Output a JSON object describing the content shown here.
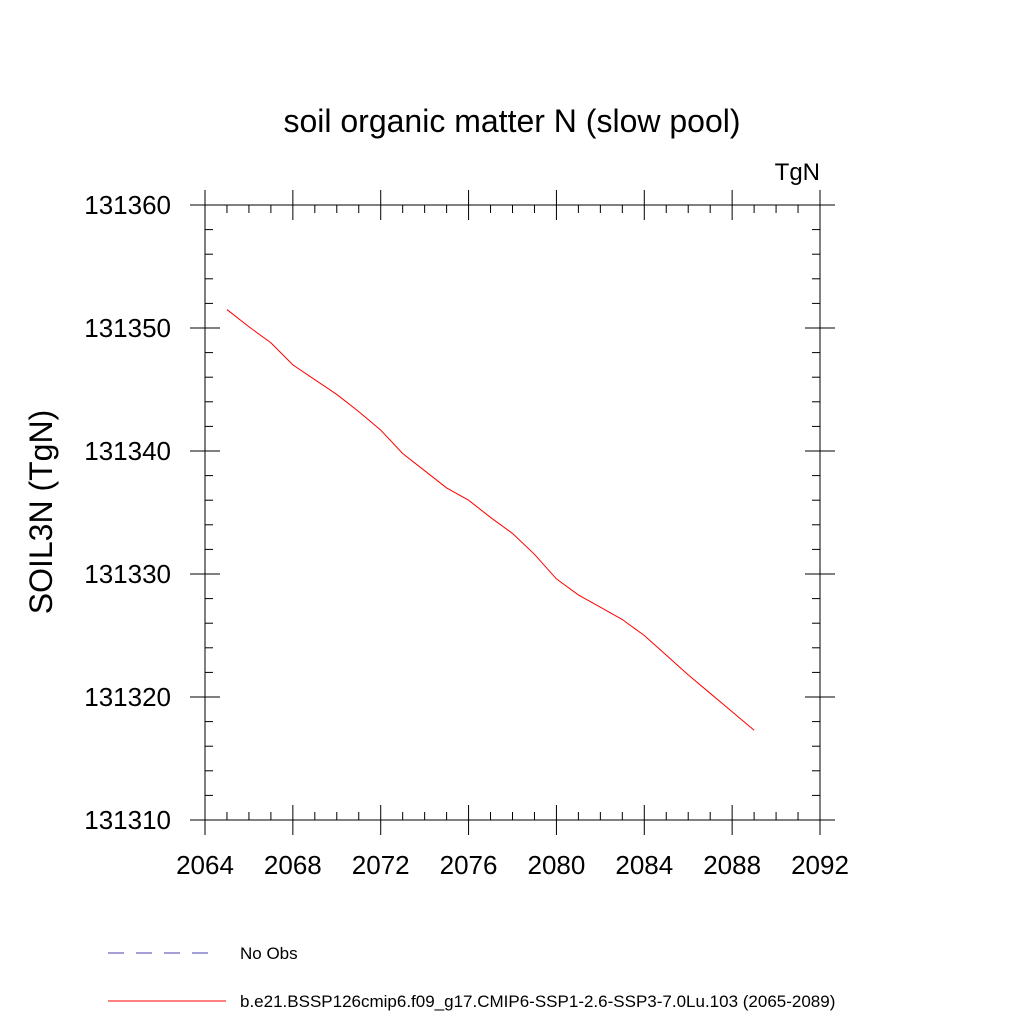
{
  "chart_data": {
    "type": "line",
    "title": "soil organic matter N (slow pool)",
    "units_label": "TgN",
    "ylabel": "SOIL3N  (TgN)",
    "xlabel": "",
    "xlim": [
      2064,
      2092
    ],
    "ylim": [
      131310,
      131360
    ],
    "x_major_ticks": [
      2064,
      2068,
      2072,
      2076,
      2080,
      2084,
      2088,
      2092
    ],
    "x_minor_step": 1,
    "y_major_ticks": [
      131310,
      131320,
      131330,
      131340,
      131350,
      131360
    ],
    "y_minor_step": 2,
    "grid": false,
    "legend_position": "bottom",
    "series": [
      {
        "name": "b.e21.BSSP126cmip6.f09_g17.CMIP6-SSP1-2.6-SSP3-7.0Lu.103 (2065-2089)",
        "color": "#ff0000",
        "dash": "solid",
        "x": [
          2065,
          2066,
          2067,
          2068,
          2069,
          2070,
          2071,
          2072,
          2073,
          2074,
          2075,
          2076,
          2077,
          2078,
          2079,
          2080,
          2081,
          2082,
          2083,
          2084,
          2085,
          2086,
          2087,
          2088,
          2089
        ],
        "y": [
          131351.5,
          131350.1,
          131348.8,
          131347.0,
          131345.8,
          131344.6,
          131343.2,
          131341.7,
          131339.8,
          131338.4,
          131337.0,
          131336.0,
          131334.6,
          131333.3,
          131331.6,
          131329.6,
          131328.3,
          131327.3,
          131326.3,
          131325.0,
          131323.4,
          131321.8,
          131320.3,
          131318.8,
          131317.3
        ]
      }
    ],
    "legend": [
      {
        "label": "No Obs",
        "color": "#4b3fb0",
        "dash": "dashed"
      },
      {
        "label": "b.e21.BSSP126cmip6.f09_g17.CMIP6-SSP1-2.6-SSP3-7.0Lu.103 (2065-2089)",
        "color": "#ff0000",
        "dash": "solid"
      }
    ]
  }
}
